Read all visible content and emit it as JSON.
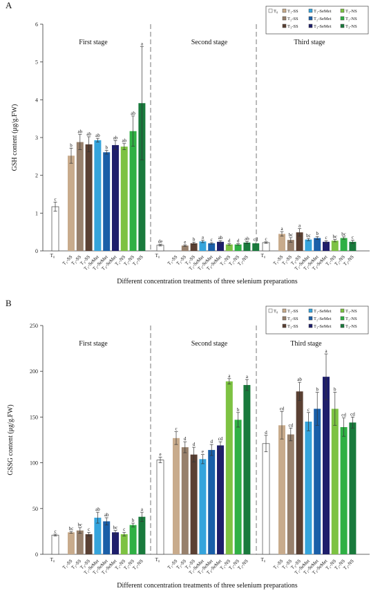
{
  "colors": {
    "T0": "#ffffff",
    "T1-SS": "#c8ab8c",
    "T2-SS": "#97806c",
    "T3-SS": "#5a4033",
    "T1-SeMet": "#35a4dc",
    "T2-SeMet": "#1a5fa8",
    "T3-SeMet": "#1e1e6b",
    "T1-NS": "#7dc242",
    "T2-NS": "#2fb044",
    "T3-NS": "#197a3c"
  },
  "chart_data": [
    {
      "type": "bar",
      "panel": "A",
      "ylabel": "GSH content (μg/g.FW)",
      "xlabel": "Different concentration treatments of three selenium preparations",
      "ylim": [
        0,
        6
      ],
      "yticks": [
        "0",
        "1",
        "2",
        "3",
        "4",
        "5",
        "6"
      ],
      "stages": [
        "First stage",
        "Second stage",
        "Third stage"
      ],
      "categories": [
        "T0",
        "T1-SS",
        "T2-SS",
        "T3-SS",
        "T1-SeMet",
        "T2-SeMet",
        "T3-SeMet",
        "T1-NS",
        "T2-NS",
        "T3-NS"
      ],
      "category_labels": [
        "T₀",
        "T₁-SS",
        "T₂-SS",
        "T₃-SS",
        "T₁-SeMet",
        "T₂-SeMet",
        "T₃-SeMet",
        "T₁-NS",
        "T₂-NS",
        "T₃-NS"
      ],
      "legend": [
        "T₀",
        "T₁-SS",
        "T₁-SeMet",
        "T₁-NS",
        "T₂-SS",
        "T₂-SeMet",
        "T₂-NS",
        "T₃-SS",
        "T₃-SeMet",
        "T₃-NS"
      ],
      "groups": [
        {
          "values": [
            1.17,
            2.52,
            2.88,
            2.82,
            2.93,
            2.61,
            2.8,
            2.76,
            3.17,
            3.91
          ],
          "errors": [
            0.12,
            0.2,
            0.2,
            0.2,
            0.05,
            0.05,
            0.12,
            0.08,
            0.4,
            1.5
          ],
          "letters": [
            "c",
            "b",
            "ab",
            "ab",
            "ab",
            "b",
            "ab",
            "ab",
            "ab",
            "a"
          ]
        },
        {
          "values": [
            0.15,
            null,
            0.14,
            0.2,
            0.25,
            0.2,
            0.24,
            0.17,
            0.17,
            0.22
          ],
          "errors": [
            0.02,
            null,
            0.02,
            0.03,
            0.03,
            0.02,
            0.03,
            0.02,
            0.02,
            0.03
          ],
          "letters": [
            "de",
            "",
            "e",
            "b",
            "a",
            "c",
            "ab",
            "d",
            "d",
            "ab"
          ],
          "extra": {
            "value": 0.2,
            "error": 0.03,
            "letter": "cd"
          }
        },
        {
          "values": [
            0.22,
            0.45,
            0.29,
            0.49,
            0.3,
            0.34,
            0.24,
            0.27,
            0.34,
            0.24
          ],
          "errors": [
            0.02,
            0.06,
            0.06,
            0.1,
            0.03,
            0.04,
            0.03,
            0.03,
            0.03,
            0.04
          ],
          "letters": [
            "c",
            "a",
            "bc",
            "a",
            "bc",
            "b",
            "c",
            "bc",
            "bc",
            "c"
          ]
        }
      ]
    },
    {
      "type": "bar",
      "panel": "B",
      "ylabel": "GSSG content (μg/g.FW)",
      "xlabel": "Different concentration treatments of three selenium preparations",
      "ylim": [
        0,
        250
      ],
      "yticks": [
        "0",
        "50",
        "100",
        "150",
        "200",
        "250"
      ],
      "stages": [
        "First stage",
        "Second stage",
        "Third stage"
      ],
      "categories": [
        "T0",
        "T1-SS",
        "T2-SS",
        "T3-SS",
        "T1-SeMet",
        "T2-SeMet",
        "T3-SeMet",
        "T1-NS",
        "T2-NS",
        "T3-NS"
      ],
      "category_labels": [
        "T₀",
        "T₁-SS",
        "T₂-SS",
        "T₃-SS",
        "T₁-SeMet",
        "T₂-SeMet",
        "T₃-SeMet",
        "T₁-NS",
        "T₂-NS",
        "T₃-NS"
      ],
      "legend": [
        "T₀",
        "T₁-SS",
        "T₁-SeMet",
        "T₁-NS",
        "T₂-SS",
        "T₂-SeMet",
        "T₂-NS",
        "T₃-SS",
        "T₃-SeMet",
        "T₃-NS"
      ],
      "groups": [
        {
          "values": [
            21,
            24,
            26,
            22,
            40,
            36,
            24,
            22,
            32,
            41
          ],
          "errors": [
            1,
            1,
            3,
            2,
            6,
            4,
            2,
            2,
            2,
            5
          ],
          "letters": [
            "c",
            "bc",
            "bc",
            "c",
            "ab",
            "ab",
            "bc",
            "c",
            "b",
            "a"
          ]
        },
        {
          "values": [
            103,
            127,
            117,
            109,
            104,
            114,
            119,
            189,
            147,
            185
          ],
          "errors": [
            3,
            7,
            6,
            8,
            5,
            6,
            4,
            3,
            8,
            6
          ],
          "letters": [
            "e",
            "c",
            "d",
            "d",
            "e",
            "d",
            "cd",
            "a",
            "b",
            "a"
          ]
        },
        {
          "values": [
            121,
            141,
            131,
            178,
            145,
            159,
            194,
            159,
            139,
            144
          ],
          "errors": [
            9,
            15,
            7,
            10,
            10,
            18,
            25,
            18,
            10,
            6
          ],
          "letters": [
            "d",
            "cd",
            "cd",
            "ab",
            "c",
            "b",
            "a",
            "b",
            "cd",
            "cd"
          ]
        }
      ]
    }
  ]
}
